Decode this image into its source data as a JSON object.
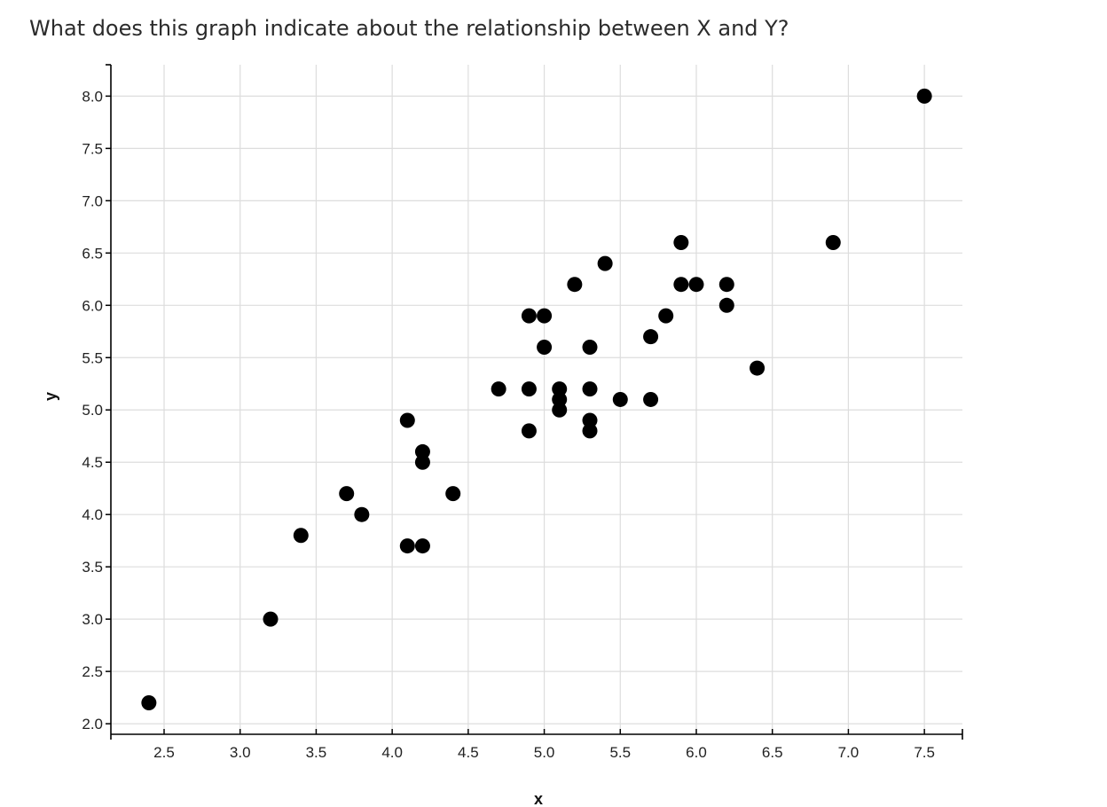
{
  "question": "What does this graph indicate about the relationship between X and Y?",
  "colors": {
    "point": "#000000",
    "grid": "#dddddd",
    "axis": "#000000",
    "text": "#222222"
  },
  "chart_data": {
    "type": "scatter",
    "title": "",
    "xlabel": "x",
    "ylabel": "y",
    "xlim": [
      2.15,
      7.75
    ],
    "ylim": [
      1.95,
      8.3
    ],
    "grid": true,
    "x_ticks": [
      2.5,
      3.0,
      3.5,
      4.0,
      4.5,
      5.0,
      5.5,
      6.0,
      6.5,
      7.0,
      7.5
    ],
    "x_tick_labels": [
      "2.5",
      "3.0",
      "3.5",
      "4.0",
      "4.5",
      "5.0",
      "5.5",
      "6.0",
      "6.5",
      "7.0",
      "7.5"
    ],
    "y_ticks": [
      2.0,
      2.5,
      3.0,
      3.5,
      4.0,
      4.5,
      5.0,
      5.5,
      6.0,
      6.5,
      7.0,
      7.5,
      8.0
    ],
    "y_tick_labels": [
      "2.0",
      "2.5",
      "3.0",
      "3.5",
      "4.0",
      "4.5",
      "5.0",
      "5.5",
      "6.0",
      "6.5",
      "7.0",
      "7.5",
      "8.0"
    ],
    "points": [
      {
        "x": 2.4,
        "y": 2.2
      },
      {
        "x": 3.2,
        "y": 3.0
      },
      {
        "x": 3.4,
        "y": 3.8
      },
      {
        "x": 3.7,
        "y": 4.2
      },
      {
        "x": 3.8,
        "y": 4.0
      },
      {
        "x": 4.1,
        "y": 4.9
      },
      {
        "x": 4.1,
        "y": 3.7
      },
      {
        "x": 4.2,
        "y": 4.6
      },
      {
        "x": 4.2,
        "y": 4.5
      },
      {
        "x": 4.2,
        "y": 3.7
      },
      {
        "x": 4.4,
        "y": 4.2
      },
      {
        "x": 4.7,
        "y": 5.2
      },
      {
        "x": 4.9,
        "y": 5.9
      },
      {
        "x": 4.9,
        "y": 5.2
      },
      {
        "x": 4.9,
        "y": 4.8
      },
      {
        "x": 5.0,
        "y": 5.9
      },
      {
        "x": 5.0,
        "y": 5.6
      },
      {
        "x": 5.1,
        "y": 5.2
      },
      {
        "x": 5.1,
        "y": 5.1
      },
      {
        "x": 5.1,
        "y": 5.0
      },
      {
        "x": 5.2,
        "y": 6.2
      },
      {
        "x": 5.3,
        "y": 5.6
      },
      {
        "x": 5.3,
        "y": 5.2
      },
      {
        "x": 5.3,
        "y": 4.9
      },
      {
        "x": 5.3,
        "y": 4.8
      },
      {
        "x": 5.4,
        "y": 6.4
      },
      {
        "x": 5.5,
        "y": 5.1
      },
      {
        "x": 5.7,
        "y": 5.7
      },
      {
        "x": 5.7,
        "y": 5.1
      },
      {
        "x": 5.8,
        "y": 5.9
      },
      {
        "x": 5.9,
        "y": 6.6
      },
      {
        "x": 5.9,
        "y": 6.2
      },
      {
        "x": 6.0,
        "y": 6.2
      },
      {
        "x": 6.2,
        "y": 6.2
      },
      {
        "x": 6.2,
        "y": 6.0
      },
      {
        "x": 6.4,
        "y": 5.4
      },
      {
        "x": 6.9,
        "y": 6.6
      },
      {
        "x": 7.5,
        "y": 8.0
      }
    ]
  }
}
